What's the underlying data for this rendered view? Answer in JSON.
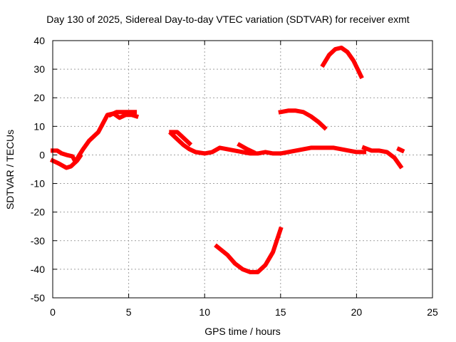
{
  "chart_data": {
    "type": "line",
    "title": "Day 130 of 2025, Sidereal Day-to-day VTEC variation (SDTVAR) for receiver exmt",
    "xlabel": "GPS time / hours",
    "ylabel": "SDTVAR / TECUs",
    "xlim": [
      0,
      25
    ],
    "ylim": [
      -50,
      40
    ],
    "xticks": [
      0,
      5,
      10,
      15,
      20,
      25
    ],
    "yticks": [
      40,
      30,
      20,
      10,
      0,
      -10,
      -20,
      -30,
      -40,
      -50
    ],
    "grid": true,
    "grid_style": "dotted",
    "legend": "none",
    "series_color": "#ff0000",
    "series": [
      {
        "name": "seg1",
        "points": [
          [
            0,
            -2
          ],
          [
            0.4,
            -3
          ],
          [
            0.9,
            -4.5
          ],
          [
            1.2,
            -4
          ],
          [
            1.6,
            -2
          ],
          [
            1.8,
            -0.5
          ]
        ]
      },
      {
        "name": "seg2",
        "points": [
          [
            0,
            1.5
          ],
          [
            0.3,
            1.5
          ],
          [
            0.6,
            0.5
          ],
          [
            0.9,
            0
          ],
          [
            1.3,
            -0.5
          ],
          [
            1.5,
            -2.5
          ],
          [
            1.7,
            -0.5
          ],
          [
            2,
            2
          ],
          [
            2.4,
            5
          ],
          [
            2.8,
            7
          ],
          [
            3,
            8
          ],
          [
            3.3,
            11
          ],
          [
            3.6,
            14
          ],
          [
            4,
            14.5
          ],
          [
            4.4,
            13
          ],
          [
            4.8,
            14
          ],
          [
            5.2,
            14
          ],
          [
            5.5,
            13.5
          ]
        ]
      },
      {
        "name": "seg3",
        "points": [
          [
            3.8,
            14
          ],
          [
            4.2,
            15
          ],
          [
            4.6,
            15
          ],
          [
            5,
            15
          ],
          [
            5.4,
            15
          ]
        ]
      },
      {
        "name": "seg4",
        "points": [
          [
            7.8,
            8
          ],
          [
            8.2,
            8
          ],
          [
            8.6,
            6
          ],
          [
            9,
            4
          ]
        ]
      },
      {
        "name": "seg5",
        "points": [
          [
            7.8,
            7.5
          ],
          [
            8.2,
            5.5
          ],
          [
            8.6,
            3.5
          ],
          [
            9,
            2
          ],
          [
            9.4,
            1
          ],
          [
            10,
            0.5
          ],
          [
            10.5,
            1
          ],
          [
            11,
            2.5
          ],
          [
            11.5,
            2
          ],
          [
            12,
            1.5
          ],
          [
            12.5,
            1
          ],
          [
            13,
            0.5
          ],
          [
            13.5,
            0.5
          ],
          [
            14,
            1
          ],
          [
            14.5,
            0.5
          ],
          [
            15,
            0.5
          ],
          [
            15.5,
            1
          ],
          [
            16,
            1.5
          ],
          [
            16.5,
            2
          ],
          [
            17,
            2.5
          ],
          [
            17.5,
            2.5
          ],
          [
            18,
            2.5
          ],
          [
            18.5,
            2.5
          ],
          [
            19,
            2
          ],
          [
            19.5,
            1.5
          ],
          [
            20,
            1
          ],
          [
            20.5,
            1
          ]
        ]
      },
      {
        "name": "seg6",
        "points": [
          [
            12.3,
            3.5
          ],
          [
            12.8,
            2
          ],
          [
            13.2,
            1
          ]
        ]
      },
      {
        "name": "seg7",
        "points": [
          [
            20.5,
            2.5
          ],
          [
            21,
            1.5
          ],
          [
            21.5,
            1.5
          ],
          [
            22,
            1
          ],
          [
            22.5,
            -1
          ],
          [
            22.9,
            -4
          ]
        ]
      },
      {
        "name": "seg8",
        "points": [
          [
            22.8,
            2
          ],
          [
            23,
            1.5
          ]
        ]
      },
      {
        "name": "seg9",
        "points": [
          [
            15,
            15
          ],
          [
            15.5,
            15.5
          ],
          [
            16,
            15.5
          ],
          [
            16.5,
            15
          ],
          [
            17,
            13.5
          ],
          [
            17.5,
            11.5
          ],
          [
            17.9,
            9.5
          ]
        ]
      },
      {
        "name": "seg10",
        "points": [
          [
            17.8,
            31.5
          ],
          [
            18.2,
            35
          ],
          [
            18.6,
            37
          ],
          [
            19,
            37.5
          ],
          [
            19.4,
            36
          ],
          [
            19.8,
            33
          ],
          [
            20.3,
            27.5
          ]
        ]
      },
      {
        "name": "seg11",
        "points": [
          [
            10.8,
            -32
          ],
          [
            11.5,
            -35
          ],
          [
            12,
            -38
          ],
          [
            12.5,
            -40
          ],
          [
            13,
            -41
          ],
          [
            13.5,
            -41
          ],
          [
            14,
            -38.5
          ],
          [
            14.5,
            -34
          ],
          [
            15,
            -26
          ]
        ]
      }
    ]
  }
}
